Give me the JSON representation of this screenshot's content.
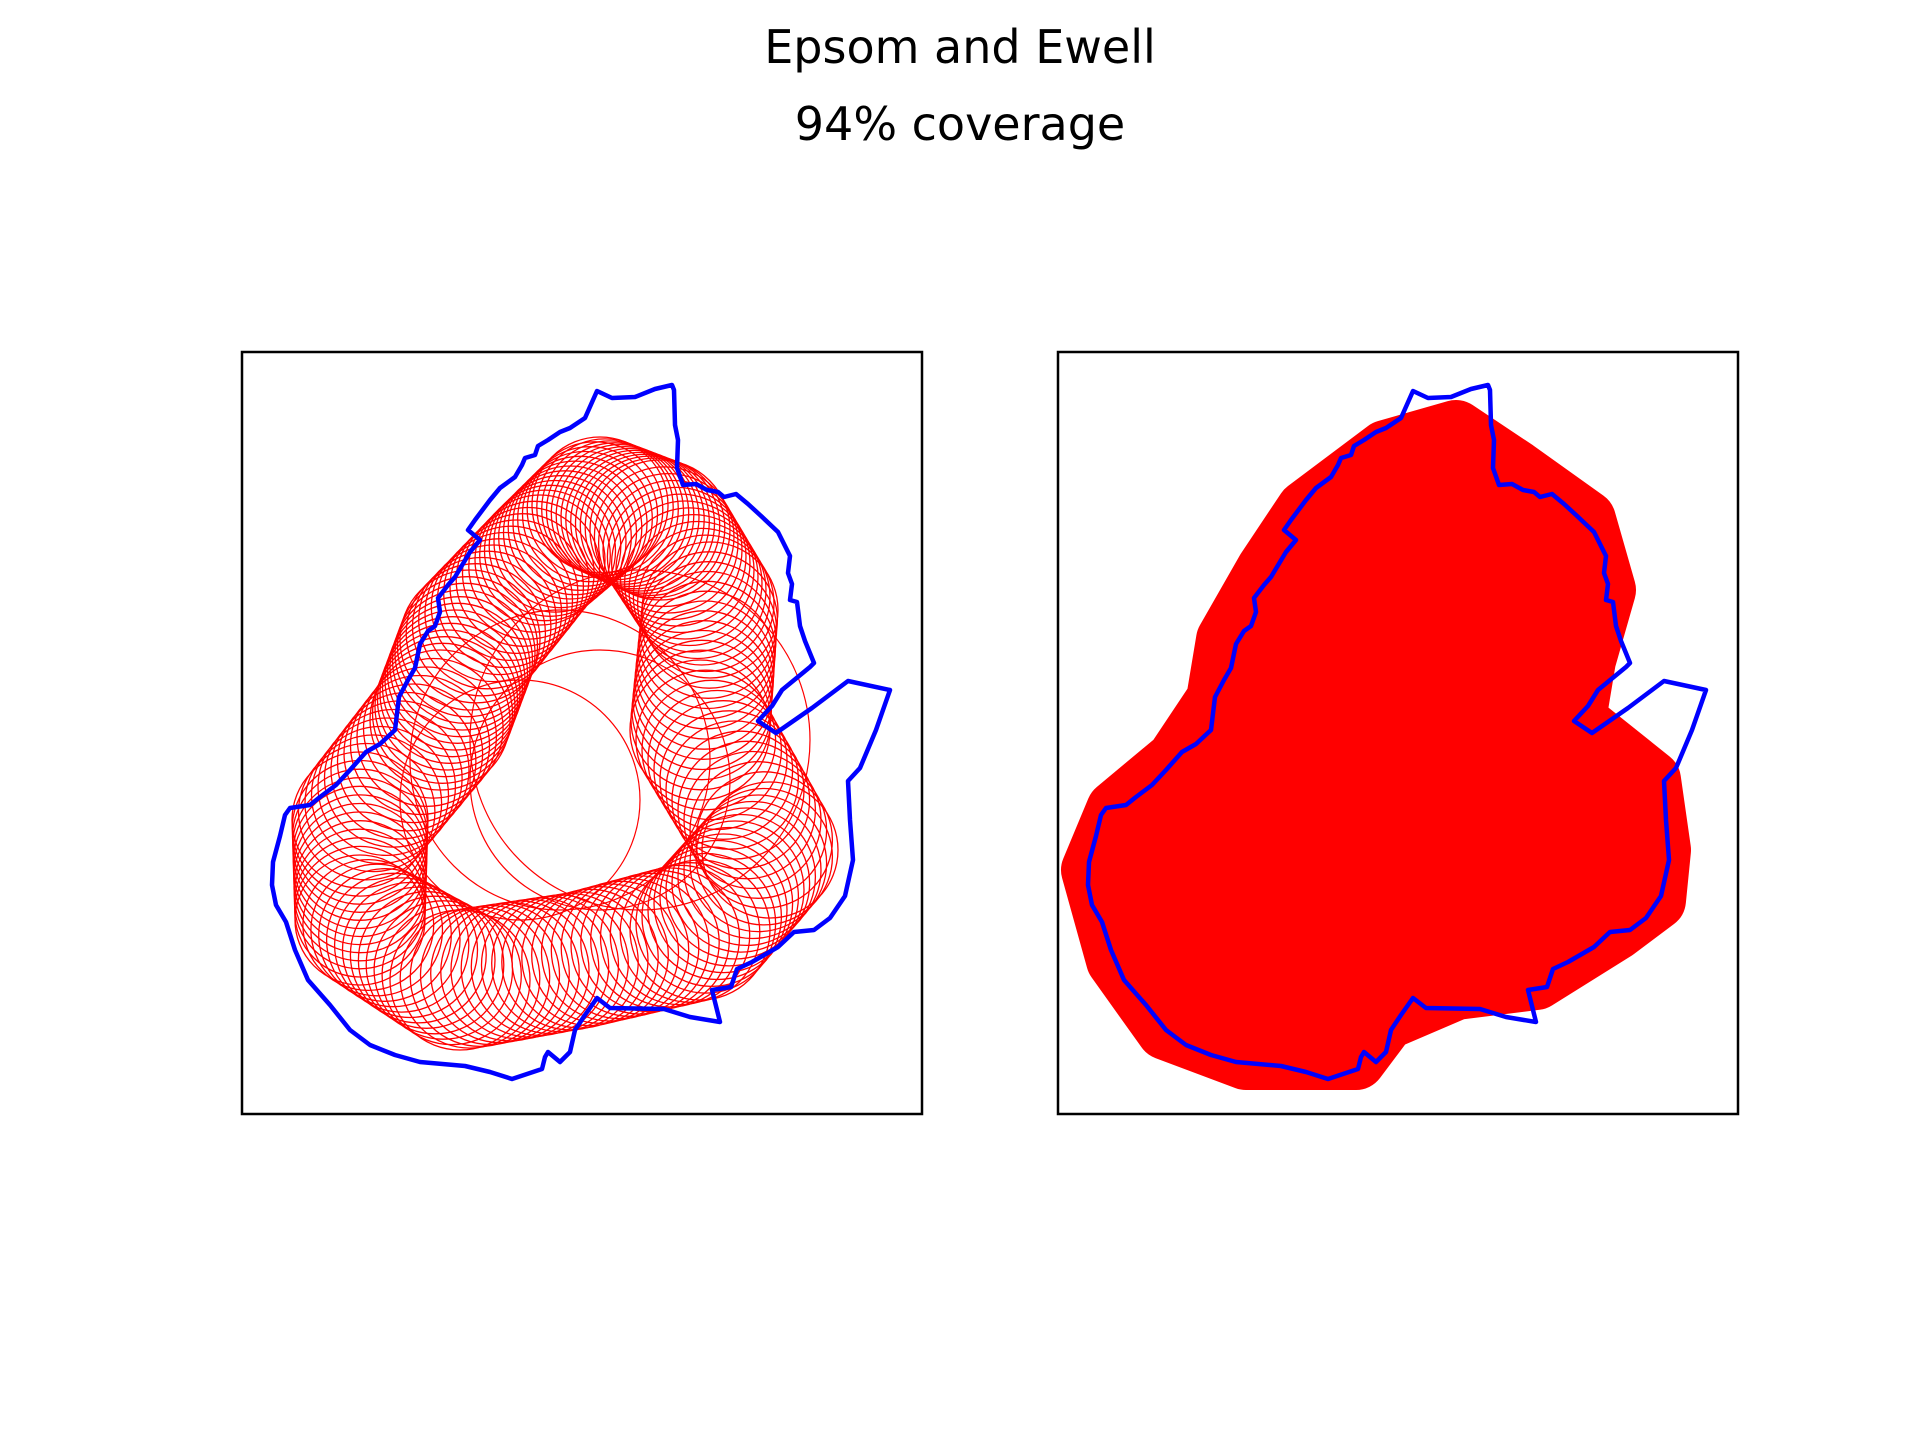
{
  "figure": {
    "title": "Epsom and Ewell",
    "subtitle": "94% coverage"
  },
  "colors": {
    "boundary": "#0000ff",
    "coverage": "#ff0000",
    "frame": "#000000",
    "background": "#ffffff"
  },
  "panels": [
    {
      "id": "left",
      "style": "circle-outlines"
    },
    {
      "id": "right",
      "style": "filled-coverage"
    }
  ]
}
